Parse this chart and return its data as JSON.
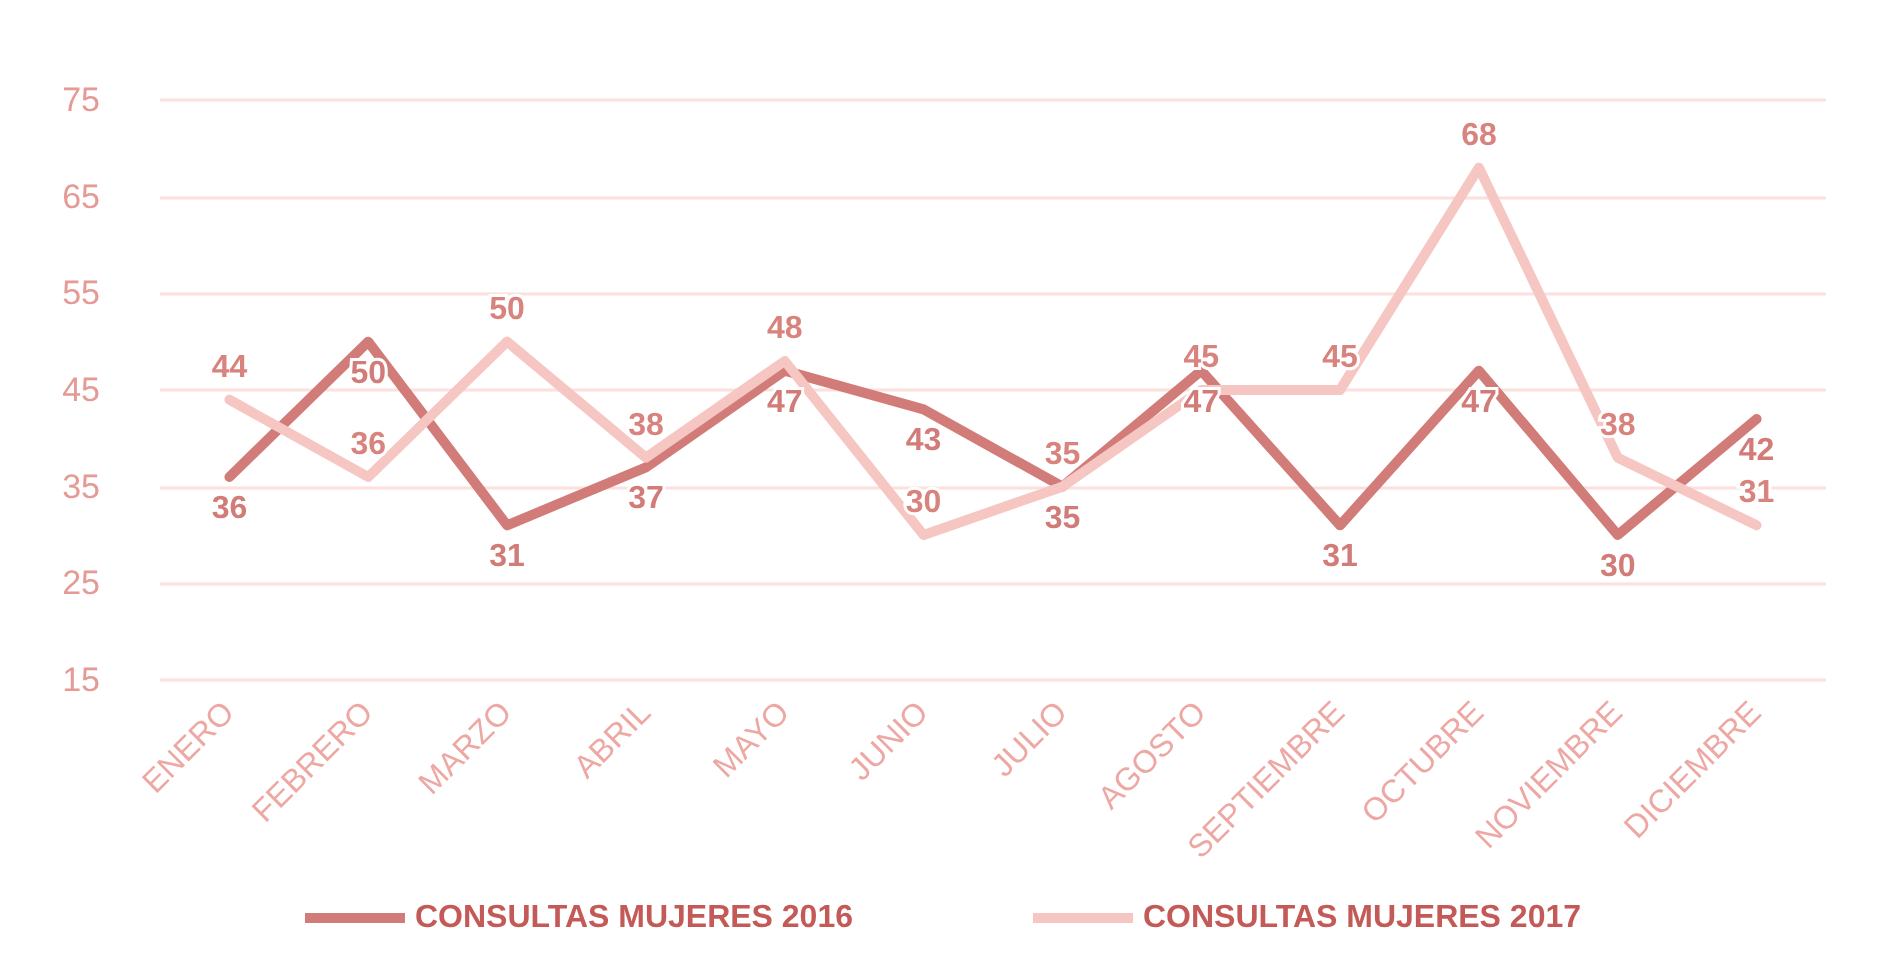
{
  "chart_data": {
    "type": "line",
    "categories": [
      "ENERO",
      "FEBRERO",
      "MARZO",
      "ABRIL",
      "MAYO",
      "JUNIO",
      "JULIO",
      "AGOSTO",
      "SEPTIEMBRE",
      "OCTUBRE",
      "NOVIEMBRE",
      "DICIEMBRE"
    ],
    "series": [
      {
        "name": "CONSULTAS MUJERES 2016",
        "color": "#d27c79",
        "values": [
          36,
          50,
          31,
          37,
          47,
          43,
          35,
          47,
          31,
          47,
          30,
          42
        ]
      },
      {
        "name": "CONSULTAS MUJERES 2017",
        "color": "#f6c6c2",
        "values": [
          44,
          36,
          50,
          38,
          48,
          30,
          35,
          45,
          45,
          68,
          38,
          31
        ]
      }
    ],
    "ylim": [
      15,
      75
    ],
    "yticks": [
      15,
      25,
      35,
      45,
      55,
      65,
      75
    ],
    "grid": "y",
    "legend": "bottom",
    "marker": "none",
    "line_style": "solid",
    "data_labels": true
  }
}
